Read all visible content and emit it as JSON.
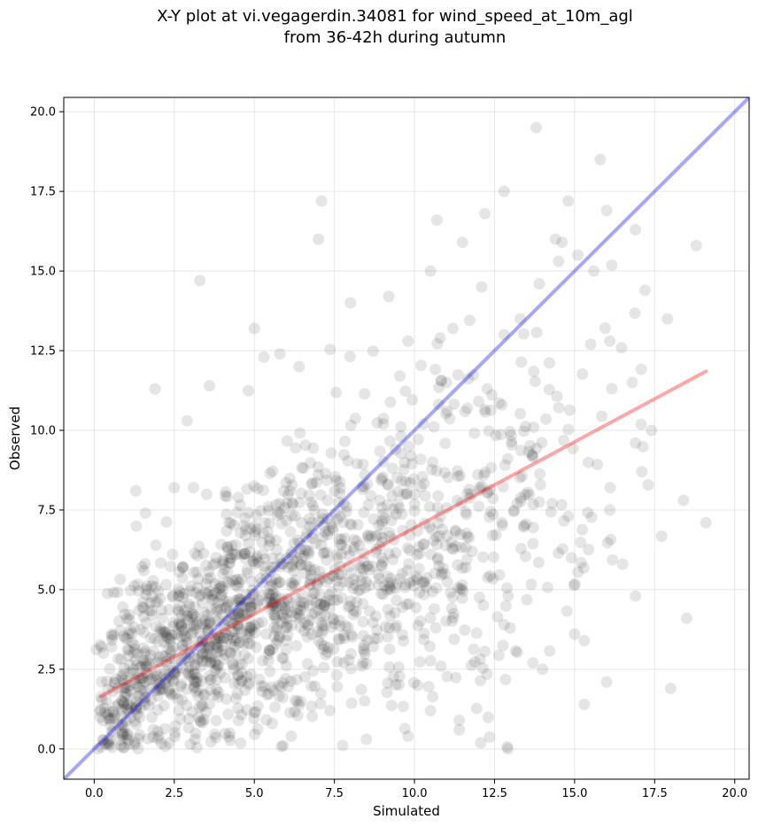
{
  "chart_data": {
    "type": "scatter",
    "title_lines": [
      "X-Y plot at vi.vegagerdin.34081 for wind_speed_at_10m_agl",
      "from 36-42h during autumn"
    ],
    "xlabel": "Simulated",
    "ylabel": "Observed",
    "xlim": [
      -0.95,
      20.45
    ],
    "ylim": [
      -0.95,
      20.45
    ],
    "xticks": [
      0.0,
      2.5,
      5.0,
      7.5,
      10.0,
      12.5,
      15.0,
      17.5,
      20.0
    ],
    "xtick_labels": [
      "0.0",
      "2.5",
      "5.0",
      "7.5",
      "10.0",
      "12.5",
      "15.0",
      "17.5",
      "20.0"
    ],
    "yticks": [
      0.0,
      2.5,
      5.0,
      7.5,
      10.0,
      12.5,
      15.0,
      17.5,
      20.0
    ],
    "ytick_labels": [
      "0.0",
      "2.5",
      "5.0",
      "7.5",
      "10.0",
      "12.5",
      "15.0",
      "17.5",
      "20.0"
    ],
    "grid": true,
    "point_color": "#000000",
    "point_alpha": 0.1,
    "lines": [
      {
        "kind": "one-to-one",
        "color": "#0000ff",
        "alpha": 0.35,
        "x": [
          -0.95,
          20.45
        ],
        "y": [
          -0.95,
          20.45
        ]
      },
      {
        "kind": "regression",
        "color": "#ff0000",
        "alpha": 0.35,
        "x": [
          0.2,
          19.1
        ],
        "y": [
          1.65,
          11.85
        ]
      }
    ],
    "points_visible_outliers": [
      [
        13.8,
        19.5
      ],
      [
        15.8,
        18.5
      ],
      [
        7.1,
        17.2
      ],
      [
        12.8,
        17.5
      ],
      [
        16.0,
        16.9
      ],
      [
        14.8,
        17.2
      ],
      [
        16.9,
        16.3
      ],
      [
        18.8,
        15.8
      ],
      [
        7.0,
        16.0
      ],
      [
        11.5,
        15.9
      ],
      [
        10.7,
        16.6
      ],
      [
        12.2,
        16.8
      ],
      [
        3.3,
        14.7
      ],
      [
        5.0,
        13.2
      ],
      [
        17.9,
        13.5
      ],
      [
        18.4,
        7.8
      ],
      [
        18.0,
        1.9
      ],
      [
        16.0,
        2.1
      ],
      [
        15.3,
        1.4
      ],
      [
        19.1,
        7.1
      ],
      [
        18.5,
        4.1
      ],
      [
        1.9,
        11.3
      ],
      [
        3.6,
        11.4
      ],
      [
        2.9,
        10.3
      ],
      [
        8.0,
        14.0
      ],
      [
        9.2,
        14.2
      ],
      [
        14.5,
        15.3
      ],
      [
        13.9,
        14.6
      ],
      [
        15.5,
        12.7
      ],
      [
        17.2,
        14.4
      ],
      [
        16.1,
        12.8
      ],
      [
        16.8,
        11.5
      ],
      [
        17.4,
        10.0
      ],
      [
        17.1,
        8.7
      ],
      [
        16.9,
        9.6
      ],
      [
        16.1,
        7.5
      ],
      [
        16.5,
        5.8
      ],
      [
        16.9,
        4.8
      ],
      [
        14.9,
        6.0
      ],
      [
        15.0,
        3.6
      ],
      [
        15.3,
        3.4
      ],
      [
        13.7,
        2.7
      ],
      [
        14.0,
        2.5
      ],
      [
        12.8,
        3.9
      ],
      [
        11.4,
        0.9
      ],
      [
        11.4,
        0.6
      ],
      [
        8.5,
        0.3
      ],
      [
        10.5,
        1.2
      ],
      [
        9.8,
        0.4
      ],
      [
        5.9,
        0.1
      ],
      [
        1.3,
        8.1
      ],
      [
        1.6,
        7.4
      ],
      [
        2.5,
        8.2
      ],
      [
        3.1,
        8.2
      ],
      [
        5.3,
        12.3
      ],
      [
        5.8,
        12.4
      ],
      [
        6.4,
        12.0
      ],
      [
        9.8,
        12.8
      ],
      [
        10.8,
        12.9
      ],
      [
        11.2,
        13.2
      ],
      [
        12.1,
        14.5
      ],
      [
        13.3,
        13.5
      ],
      [
        14.4,
        16.0
      ],
      [
        15.6,
        15.0
      ],
      [
        15.1,
        15.5
      ],
      [
        12.8,
        13.0
      ],
      [
        10.5,
        15.0
      ],
      [
        11.0,
        11.5
      ]
    ],
    "cloud_clusters": [
      {
        "cx": 2.8,
        "cy": 3.2,
        "sx": 1.3,
        "sy": 1.5,
        "n": 420
      },
      {
        "cx": 5.5,
        "cy": 4.8,
        "sx": 1.6,
        "sy": 1.9,
        "n": 430
      },
      {
        "cx": 8.3,
        "cy": 5.6,
        "sx": 1.7,
        "sy": 2.3,
        "n": 340
      },
      {
        "cx": 11.0,
        "cy": 6.8,
        "sx": 1.8,
        "sy": 2.7,
        "n": 200
      },
      {
        "cx": 13.8,
        "cy": 8.0,
        "sx": 1.7,
        "sy": 3.0,
        "n": 95
      },
      {
        "cx": 1.2,
        "cy": 1.6,
        "sx": 0.8,
        "sy": 1.0,
        "n": 110
      }
    ]
  }
}
